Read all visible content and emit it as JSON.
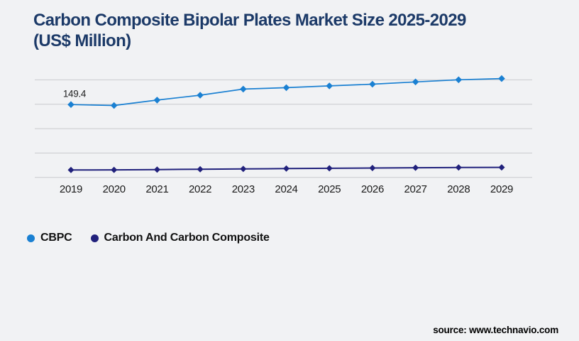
{
  "page": {
    "background": "#f1f2f4",
    "title_line1": "Carbon Composite Bipolar Plates Market Size 2025-2029",
    "title_line2": "(US$ Million)",
    "title_color": "#1c3a68",
    "source_text": "source: www.technavio.com"
  },
  "legend": {
    "position": "bottom-left",
    "items": [
      {
        "label": "CBPC",
        "color": "#1a80d2"
      },
      {
        "label": "Carbon And Carbon Composite",
        "color": "#21217c"
      }
    ]
  },
  "chart_data": {
    "type": "line",
    "title": "Carbon Composite Bipolar Plates Market Size 2025-2029 (US$ Million)",
    "xlabel": "",
    "ylabel": "",
    "categories": [
      "2019",
      "2020",
      "2021",
      "2022",
      "2023",
      "2024",
      "2025",
      "2026",
      "2027",
      "2028",
      "2029"
    ],
    "series": [
      {
        "name": "CBPC",
        "color": "#1a80d2",
        "marker": "diamond",
        "values": [
          149.4,
          147.4,
          158.5,
          168.6,
          181.1,
          184.0,
          187.7,
          191.2,
          195.9,
          200.2,
          202.7
        ]
      },
      {
        "name": "Carbon And Carbon Composite",
        "color": "#21217c",
        "marker": "diamond",
        "values": [
          15.2,
          15.4,
          16.1,
          16.7,
          17.4,
          18.0,
          18.7,
          19.3,
          19.8,
          20.2,
          20.6
        ]
      }
    ],
    "point_label": {
      "series": "CBPC",
      "category": "2019",
      "text": "149.4"
    },
    "ylim": [
      0,
      240
    ],
    "gridlines": {
      "visible": true,
      "values": [
        0,
        50,
        100,
        150,
        200
      ]
    },
    "grid_color": "#c9cacd",
    "axis_tick_color": "#1a1a1a",
    "legend_position": "bottom-left",
    "y_axis_labels_visible": false
  }
}
